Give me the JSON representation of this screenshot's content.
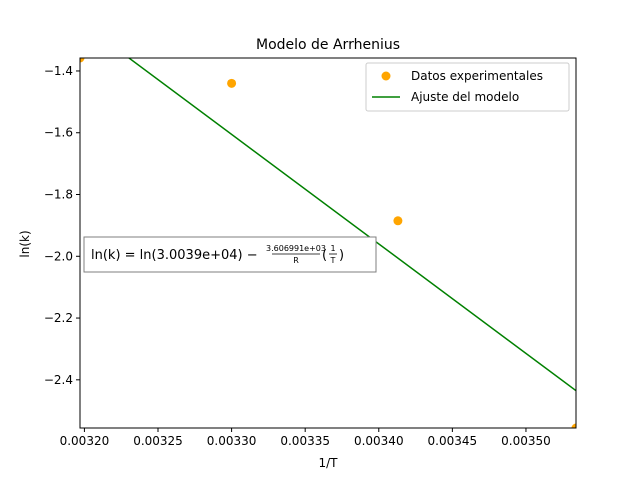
{
  "chart_data": {
    "type": "scatter",
    "title": "Modelo de Arrhenius",
    "xlabel": "1/T",
    "ylabel": "ln(k)",
    "xlim": [
      0.003197,
      0.003534
    ],
    "ylim": [
      -2.556,
      -1.358
    ],
    "x_ticks": [
      0.0032,
      0.00325,
      0.0033,
      0.00335,
      0.0034,
      0.00345,
      0.0035
    ],
    "x_tick_labels": [
      "0.00320",
      "0.00325",
      "0.00330",
      "0.00335",
      "0.00340",
      "0.00345",
      "0.00350"
    ],
    "y_ticks": [
      -1.4,
      -1.6,
      -1.8,
      -2.0,
      -2.2,
      -2.4
    ],
    "y_tick_labels": [
      "−1.4",
      "−1.6",
      "−1.8",
      "−2.0",
      "−2.2",
      "−2.4"
    ],
    "grid": false,
    "legend_position": "top-right",
    "series": [
      {
        "name": "Datos experimentales",
        "kind": "scatter",
        "color": "#FFA500",
        "x": [
          0.003197,
          0.0033,
          0.003413,
          0.003534
        ],
        "y": [
          -1.358,
          -1.44,
          -1.885,
          -2.556
        ]
      },
      {
        "name": "Ajuste del modelo",
        "kind": "line",
        "color": "#008000",
        "x": [
          0.003197,
          0.003534
        ],
        "y": [
          -1.24,
          -2.435
        ]
      }
    ],
    "annotation": {
      "prefix": "ln(k) = ln(3.0039e+04) − ",
      "frac_num": "3.606991e+03",
      "frac_den": "R",
      "paren_num": "1",
      "paren_den": "T"
    }
  }
}
